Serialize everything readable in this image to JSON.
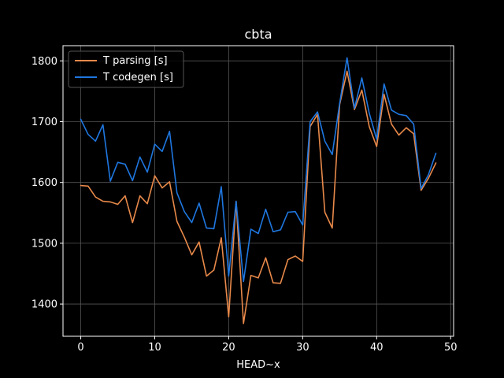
{
  "chart_data": {
    "type": "line",
    "title": "cbta",
    "xlabel": "HEAD~x",
    "ylabel": "",
    "xlim": [
      -2.4,
      50.4
    ],
    "ylim": [
      1347,
      1825
    ],
    "xticks": [
      0,
      10,
      20,
      30,
      40,
      50
    ],
    "yticks": [
      1400,
      1500,
      1600,
      1700,
      1800
    ],
    "grid": true,
    "legend_position": "top-left",
    "x": [
      0,
      1,
      2,
      3,
      4,
      5,
      6,
      7,
      8,
      9,
      10,
      11,
      12,
      13,
      14,
      15,
      16,
      17,
      18,
      19,
      20,
      21,
      22,
      23,
      24,
      25,
      26,
      27,
      28,
      29,
      30,
      31,
      32,
      33,
      34,
      35,
      36,
      37,
      38,
      39,
      40,
      41,
      42,
      43,
      44,
      45,
      46,
      47,
      48
    ],
    "series": [
      {
        "name": "T parsing [s]",
        "color": "#e8894a",
        "values": [
          1595,
          1594,
          1576,
          1569,
          1568,
          1564,
          1578,
          1534,
          1578,
          1565,
          1611,
          1591,
          1601,
          1536,
          1510,
          1481,
          1502,
          1446,
          1456,
          1509,
          1379,
          1569,
          1368,
          1447,
          1443,
          1476,
          1435,
          1434,
          1473,
          1479,
          1470,
          1692,
          1712,
          1551,
          1525,
          1728,
          1783,
          1720,
          1752,
          1692,
          1659,
          1745,
          1696,
          1678,
          1690,
          1680,
          1587,
          1607,
          1632
        ]
      },
      {
        "name": "T codegen [s]",
        "color": "#1f77e0",
        "values": [
          1704,
          1679,
          1668,
          1695,
          1602,
          1633,
          1630,
          1603,
          1642,
          1617,
          1663,
          1651,
          1684,
          1583,
          1552,
          1534,
          1566,
          1525,
          1524,
          1593,
          1446,
          1569,
          1437,
          1523,
          1516,
          1556,
          1519,
          1522,
          1551,
          1552,
          1530,
          1700,
          1716,
          1668,
          1646,
          1730,
          1805,
          1722,
          1772,
          1714,
          1671,
          1762,
          1719,
          1712,
          1710,
          1696,
          1590,
          1613,
          1648
        ]
      }
    ]
  }
}
